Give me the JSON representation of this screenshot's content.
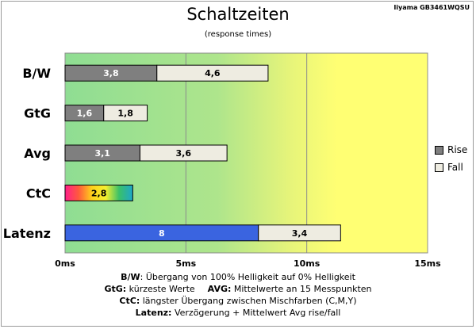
{
  "corner_label": "Iiyama GB3461WQSU",
  "legend": {
    "rise": {
      "label": "Rise",
      "color": "#7f7f7f"
    },
    "fall": {
      "label": "Fall",
      "color": "#eeece1"
    }
  },
  "notes": [
    {
      "bold": "B/W",
      "text": ":  Übergang von 100% Helligkeit auf 0% Helligkeit"
    },
    {
      "bold": "GtG:",
      "text": " kürzeste  Werte",
      "bold2": "AVG:",
      "text2": " Mittelwerte  an 15 Messpunkten"
    },
    {
      "bold": "CtC:",
      "text": " längster Übergang  zwischen Mischfarben  (C,M,Y)"
    },
    {
      "bold": "Latenz:",
      "text": " Verzögerung  + Mittelwert  Avg rise/fall"
    }
  ],
  "chart_data": {
    "type": "bar",
    "orientation": "horizontal",
    "stacked": true,
    "title": "Schaltzeiten",
    "subtitle": "(response times)",
    "categories": [
      "B/W",
      "GtG",
      "Avg",
      "CtC",
      "Latenz"
    ],
    "series": [
      {
        "name": "Rise",
        "values": [
          3.8,
          1.6,
          3.1,
          2.8,
          8
        ],
        "labels": [
          "3,8",
          "1,6",
          "3,1",
          "2,8",
          "8"
        ]
      },
      {
        "name": "Fall",
        "values": [
          4.6,
          1.8,
          3.6,
          null,
          3.4
        ],
        "labels": [
          "4,6",
          "1,8",
          "3,6",
          "",
          "3,4"
        ]
      }
    ],
    "special_fills": {
      "CtC": "rainbow",
      "Latenz": "#3a64e0"
    },
    "xlim": [
      0,
      15
    ],
    "xticks": [
      0,
      5,
      10,
      15
    ],
    "xtick_labels": [
      "0ms",
      "5ms",
      "10ms",
      "15ms"
    ],
    "grid": true,
    "legend_position": "right",
    "background": "gradient green to yellow"
  }
}
